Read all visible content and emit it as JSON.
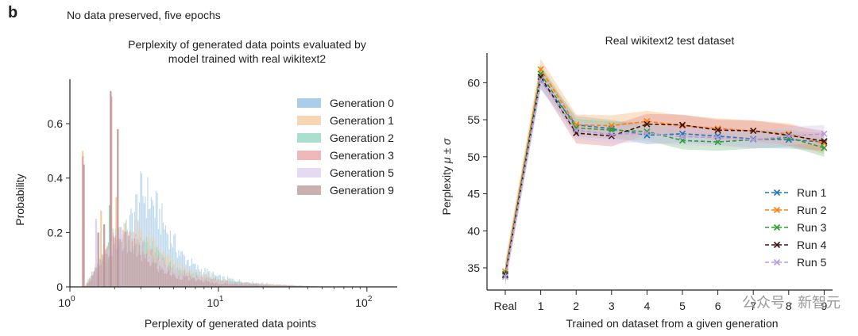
{
  "panel_letter": "b",
  "subtitle": "No data preserved, five epochs",
  "watermark": "公众号 · 新智元",
  "chart_data": [
    {
      "type": "histogram",
      "title_lines": [
        "Perplexity of generated data points evaluated by",
        "model trained with real wikitext2"
      ],
      "xlabel": "Perplexity of generated data points",
      "ylabel": "Probability",
      "xscale": "log",
      "xlim": [
        1,
        160
      ],
      "ylim": [
        0,
        0.74
      ],
      "xticks": [
        {
          "value": 1,
          "base": "10",
          "exp": "0"
        },
        {
          "value": 10,
          "base": "10",
          "exp": "1"
        },
        {
          "value": 100,
          "base": "10",
          "exp": "2"
        }
      ],
      "yticks": [
        {
          "value": 0,
          "label": "0"
        },
        {
          "value": 0.2,
          "label": "0.2"
        },
        {
          "value": 0.4,
          "label": "0.4"
        },
        {
          "value": 0.6,
          "label": "0.6"
        }
      ],
      "legend_position": "top-right",
      "series": [
        {
          "name": "Generation 0",
          "color": "#8fbde0",
          "profile": [
            [
              1.25,
              0
            ],
            [
              1.4,
              0.02
            ],
            [
              1.7,
              0.06
            ],
            [
              2.0,
              0.12
            ],
            [
              2.4,
              0.2
            ],
            [
              2.8,
              0.3
            ],
            [
              3.0,
              0.34
            ],
            [
              3.3,
              0.33
            ],
            [
              3.8,
              0.28
            ],
            [
              4.5,
              0.2
            ],
            [
              5.5,
              0.12
            ],
            [
              7.0,
              0.07
            ],
            [
              10,
              0.035
            ],
            [
              15,
              0.018
            ],
            [
              25,
              0.008
            ],
            [
              45,
              0.002
            ],
            [
              60,
              0
            ]
          ],
          "spikes": []
        },
        {
          "name": "Generation 1",
          "color": "#f4c89a",
          "profile": [
            [
              1.25,
              0
            ],
            [
              1.4,
              0.05
            ],
            [
              1.7,
              0.13
            ],
            [
              2.0,
              0.2
            ],
            [
              2.4,
              0.21
            ],
            [
              3.0,
              0.19
            ],
            [
              3.6,
              0.15
            ],
            [
              4.5,
              0.1
            ],
            [
              6.0,
              0.06
            ],
            [
              8.0,
              0.04
            ],
            [
              12,
              0.02
            ],
            [
              20,
              0.01
            ],
            [
              40,
              0.002
            ],
            [
              60,
              0
            ]
          ],
          "spikes": [
            [
              1.22,
              0.5
            ],
            [
              1.62,
              0.28
            ],
            [
              2.05,
              0.33
            ]
          ]
        },
        {
          "name": "Generation 2",
          "color": "#8ed4bd",
          "profile": [
            [
              1.25,
              0
            ],
            [
              1.4,
              0.05
            ],
            [
              1.7,
              0.12
            ],
            [
              2.0,
              0.18
            ],
            [
              2.4,
              0.19
            ],
            [
              3.0,
              0.17
            ],
            [
              3.6,
              0.13
            ],
            [
              4.5,
              0.08
            ],
            [
              6.0,
              0.05
            ],
            [
              8.0,
              0.035
            ],
            [
              12,
              0.018
            ],
            [
              20,
              0.008
            ],
            [
              40,
              0.002
            ],
            [
              60,
              0
            ]
          ],
          "spikes": [
            [
              1.85,
              0.3
            ]
          ]
        },
        {
          "name": "Generation 3",
          "color": "#e8a2a2",
          "profile": [
            [
              1.25,
              0
            ],
            [
              1.4,
              0.04
            ],
            [
              1.7,
              0.11
            ],
            [
              2.0,
              0.17
            ],
            [
              2.4,
              0.18
            ],
            [
              3.0,
              0.15
            ],
            [
              3.6,
              0.11
            ],
            [
              4.5,
              0.07
            ],
            [
              6.0,
              0.045
            ],
            [
              8.0,
              0.03
            ],
            [
              12,
              0.015
            ],
            [
              20,
              0.007
            ],
            [
              40,
              0.002
            ],
            [
              60,
              0
            ]
          ],
          "spikes": [
            [
              1.22,
              0.48
            ],
            [
              1.9,
              0.7
            ]
          ]
        },
        {
          "name": "Generation 5",
          "color": "#dccdf0",
          "profile": [
            [
              1.25,
              0
            ],
            [
              1.4,
              0.04
            ],
            [
              1.7,
              0.1
            ],
            [
              2.0,
              0.16
            ],
            [
              2.4,
              0.17
            ],
            [
              3.0,
              0.14
            ],
            [
              3.6,
              0.1
            ],
            [
              4.5,
              0.065
            ],
            [
              6.0,
              0.04
            ],
            [
              8.0,
              0.028
            ],
            [
              12,
              0.014
            ],
            [
              20,
              0.006
            ],
            [
              40,
              0.002
            ],
            [
              60,
              0
            ]
          ],
          "spikes": [
            [
              1.5,
              0.25
            ],
            [
              2.2,
              0.22
            ]
          ]
        },
        {
          "name": "Generation 9",
          "color": "#b99595",
          "profile": [
            [
              1.25,
              0
            ],
            [
              1.4,
              0.04
            ],
            [
              1.6,
              0.09
            ],
            [
              1.9,
              0.15
            ],
            [
              2.2,
              0.17
            ],
            [
              2.7,
              0.14
            ],
            [
              3.2,
              0.1
            ],
            [
              4.0,
              0.065
            ],
            [
              5.0,
              0.04
            ],
            [
              7.0,
              0.025
            ],
            [
              10,
              0.012
            ],
            [
              20,
              0.005
            ],
            [
              40,
              0.001
            ],
            [
              60,
              0
            ]
          ],
          "spikes": [
            [
              1.24,
              0.45
            ],
            [
              1.88,
              0.72
            ],
            [
              2.1,
              0.58
            ],
            [
              1.7,
              0.23
            ],
            [
              1.55,
              0.2
            ]
          ]
        }
      ]
    },
    {
      "type": "line",
      "title": "Real wikitext2 test dataset",
      "xlabel": "Trained on dataset from a given generation",
      "ylabel_text": "Perplexity ",
      "ylabel_math": "μ ± σ",
      "categories": [
        "Real",
        "1",
        "2",
        "3",
        "4",
        "5",
        "6",
        "7",
        "8",
        "9"
      ],
      "ylim": [
        32,
        64
      ],
      "yticks": [
        {
          "value": 35,
          "label": "35"
        },
        {
          "value": 40,
          "label": "40"
        },
        {
          "value": 45,
          "label": "45"
        },
        {
          "value": 50,
          "label": "50"
        },
        {
          "value": 55,
          "label": "55"
        },
        {
          "value": 60,
          "label": "60"
        }
      ],
      "legend_position": "bottom-right",
      "series": [
        {
          "name": "Run 1",
          "color": "#1f77b4",
          "band_color": "#8fb7da",
          "sigma": 1.2,
          "values": [
            34.0,
            60.3,
            54.3,
            53.8,
            52.9,
            53.1,
            52.8,
            52.4,
            52.3,
            52.0
          ]
        },
        {
          "name": "Run 2",
          "color": "#ff7f0e",
          "band_color": "#f9bf86",
          "sigma": 1.4,
          "values": [
            34.5,
            61.8,
            54.3,
            54.2,
            54.8,
            54.2,
            53.8,
            53.5,
            53.1,
            51.8
          ]
        },
        {
          "name": "Run 3",
          "color": "#2ca02c",
          "band_color": "#96cf96",
          "sigma": 1.2,
          "values": [
            34.2,
            61.2,
            53.9,
            53.6,
            53.4,
            52.2,
            52.0,
            52.3,
            52.6,
            51.2
          ]
        },
        {
          "name": "Run 4",
          "color": "#3d1410",
          "band_color": "#e59999",
          "sigma": 1.4,
          "values": [
            34.0,
            60.8,
            53.2,
            52.8,
            54.4,
            54.3,
            53.6,
            53.5,
            52.9,
            52.1
          ]
        },
        {
          "name": "Run 5",
          "color": "#b59be0",
          "band_color": "#d7c9ef",
          "sigma": 1.2,
          "values": [
            33.8,
            60.4,
            53.6,
            53.0,
            53.2,
            52.7,
            52.6,
            52.3,
            52.8,
            53.1
          ]
        }
      ]
    }
  ]
}
